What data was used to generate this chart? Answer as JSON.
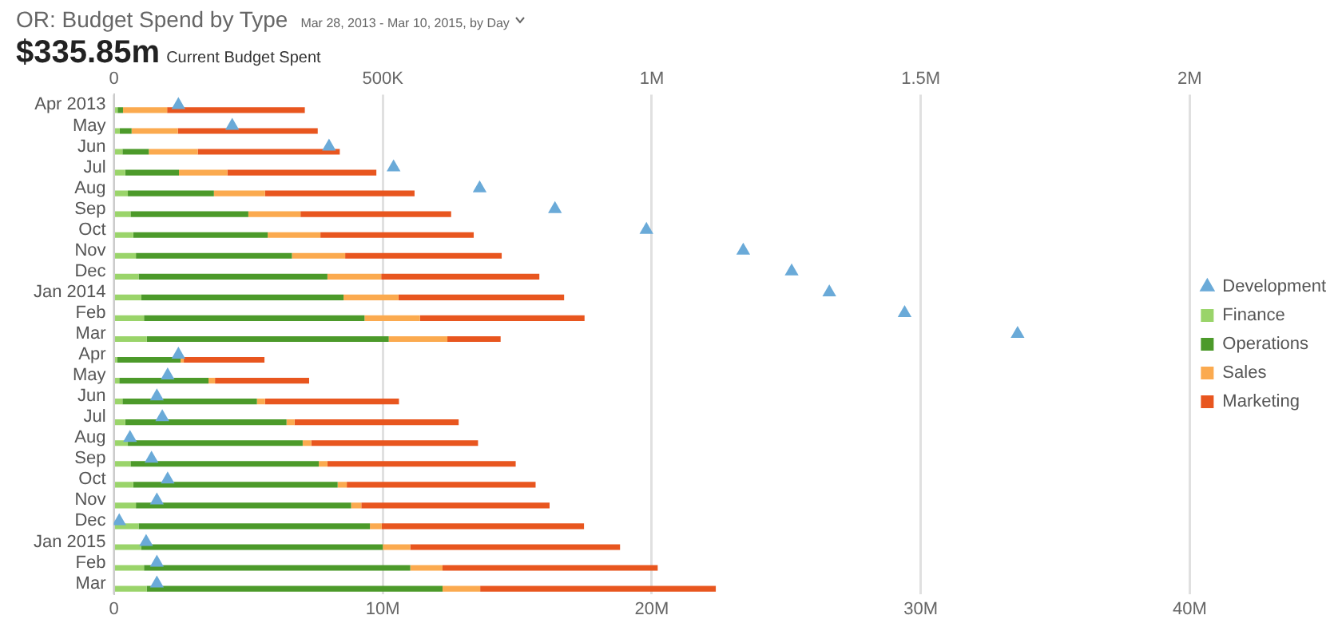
{
  "chart_data": {
    "type": "bar",
    "orientation": "horizontal",
    "stacked": true,
    "title": "OR: Budget Spend by Type",
    "subtitle": "Mar 28, 2013 - Mar 10, 2015, by Day",
    "annotations": [
      "$335.85m",
      "Current Budget Spent"
    ],
    "categories": [
      "Apr 2013",
      "May",
      "Jun",
      "Jul",
      "Aug",
      "Sep",
      "Oct",
      "Nov",
      "Dec",
      "Jan 2014",
      "Feb",
      "Mar",
      "Apr",
      "May",
      "Jun",
      "Jul",
      "Aug",
      "Sep",
      "Oct",
      "Nov",
      "Dec",
      "Jan 2015",
      "Feb",
      "Mar"
    ],
    "series": [
      {
        "name": "Development",
        "type": "scatter",
        "axis": "x2",
        "marker": "triangle",
        "color": "#6aaad8",
        "values": [
          120000,
          220000,
          400000,
          520000,
          680000,
          820000,
          990000,
          1170000,
          1260000,
          1330000,
          1470000,
          1680000,
          120000,
          100000,
          80000,
          90000,
          30000,
          70000,
          100000,
          80000,
          10000,
          60000,
          80000,
          80000
        ]
      },
      {
        "name": "Finance",
        "color": "#9ad46a",
        "values": [
          140000,
          220000,
          320000,
          420000,
          520000,
          620000,
          720000,
          820000,
          920000,
          1020000,
          1120000,
          1220000,
          120000,
          200000,
          320000,
          420000,
          520000,
          620000,
          720000,
          820000,
          920000,
          1020000,
          1120000,
          1220000
        ]
      },
      {
        "name": "Operations",
        "color": "#4c9a2a",
        "values": [
          200000,
          440000,
          980000,
          2000000,
          3200000,
          4380000,
          5000000,
          5800000,
          7020000,
          7520000,
          8200000,
          9000000,
          2360000,
          3320000,
          5000000,
          6000000,
          6500000,
          7000000,
          7600000,
          8000000,
          8600000,
          8980000,
          9900000,
          11000000
        ]
      },
      {
        "name": "Sales",
        "color": "#fbaa4f",
        "values": [
          1640000,
          1720000,
          1820000,
          1800000,
          1900000,
          1940000,
          1960000,
          1980000,
          2000000,
          2040000,
          2060000,
          2180000,
          120000,
          240000,
          300000,
          300000,
          320000,
          320000,
          340000,
          380000,
          440000,
          1020000,
          1200000,
          1400000
        ]
      },
      {
        "name": "Marketing",
        "color": "#e8561f",
        "values": [
          5120000,
          5200000,
          5280000,
          5540000,
          5560000,
          5600000,
          5700000,
          5820000,
          5880000,
          6160000,
          6120000,
          1980000,
          3000000,
          3500000,
          4980000,
          6100000,
          6200000,
          7000000,
          7020000,
          7000000,
          7520000,
          7800000,
          8000000,
          8760000
        ]
      }
    ],
    "xlim": [
      0,
      40000000
    ],
    "xticks": [
      0,
      {
        "value": 10000000,
        "label": "10M"
      },
      {
        "value": 20000000,
        "label": "20M"
      },
      {
        "value": 30000000,
        "label": "30M"
      },
      {
        "value": 40000000,
        "label": "40M"
      }
    ],
    "x2lim": [
      0,
      2000000
    ],
    "x2ticks": [
      0,
      {
        "value": 500000,
        "label": "500K"
      },
      {
        "value": 1000000,
        "label": "1M"
      },
      {
        "value": 1500000,
        "label": "1.5M"
      },
      {
        "value": 2000000,
        "label": "2M"
      }
    ],
    "grid": "x",
    "legend": "right"
  }
}
